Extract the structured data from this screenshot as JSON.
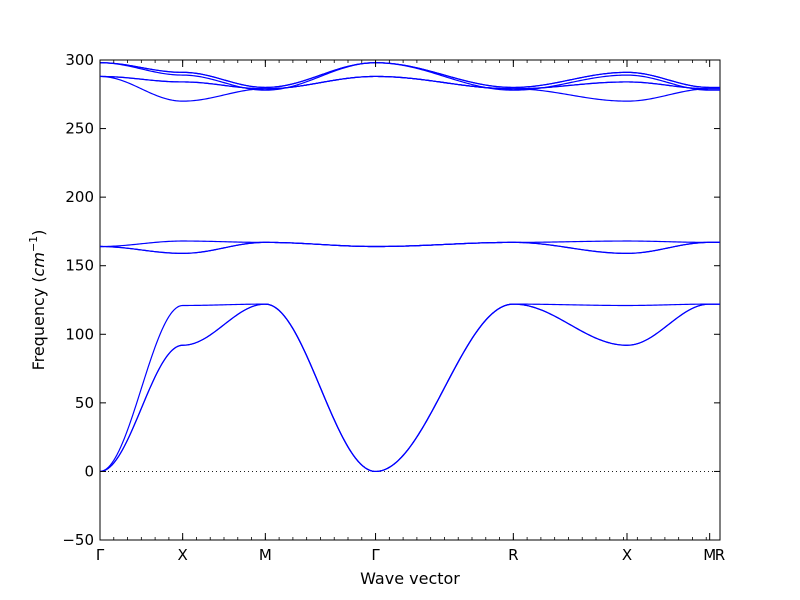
{
  "chart_data": {
    "type": "line",
    "xlabel": "Wave vector",
    "ylabel_text": "Frequency (",
    "ylabel_unit_base": "cm",
    "ylabel_unit_exp": "−1",
    "ylabel_close": ")",
    "ylim": [
      -50,
      300
    ],
    "y_ticks": [
      -50,
      0,
      50,
      100,
      150,
      200,
      250,
      300
    ],
    "y_tick_labels": [
      "−50",
      "0",
      "50",
      "100",
      "150",
      "200",
      "250",
      "300"
    ],
    "xlim": [
      0,
      9
    ],
    "x_ticks": [
      0,
      1.2,
      2.4,
      4,
      6,
      7.65,
      8.85,
      9
    ],
    "x_tick_labels": [
      "Γ",
      "X",
      "M",
      "Γ",
      "R",
      "X",
      "M",
      "R"
    ],
    "minor_x_step": 0.2,
    "zero_line": true,
    "grid": false,
    "line_color": "#0000ff",
    "segments": [
      {
        "from": "Γ",
        "to": "X",
        "x0": 0,
        "x1": 1.2
      },
      {
        "from": "X",
        "to": "M",
        "x0": 1.2,
        "x1": 2.4
      },
      {
        "from": "M",
        "to": "Γ",
        "x0": 2.4,
        "x1": 4
      },
      {
        "from": "Γ",
        "to": "R",
        "x0": 4,
        "x1": 6
      },
      {
        "from": "R",
        "to": "X",
        "x0": 6,
        "x1": 7.65
      },
      {
        "from": "X",
        "to": "M",
        "x0": 7.65,
        "x1": 8.85
      },
      {
        "from": "M",
        "to": "R",
        "x0": 8.85,
        "x1": 9
      }
    ],
    "series": [
      {
        "values": [
          [
            0,
            0
          ],
          [
            1.2,
            121
          ],
          [
            2.4,
            122
          ],
          [
            4,
            0
          ],
          [
            6,
            122
          ],
          [
            7.65,
            121
          ],
          [
            8.85,
            122
          ],
          [
            9,
            122
          ]
        ]
      },
      {
        "values": [
          [
            0,
            0
          ],
          [
            1.2,
            92
          ],
          [
            2.4,
            122
          ],
          [
            4,
            0
          ],
          [
            6,
            122
          ],
          [
            7.65,
            92
          ],
          [
            8.85,
            122
          ],
          [
            9,
            122
          ]
        ]
      },
      {
        "values": [
          [
            0,
            0
          ],
          [
            1.2,
            92
          ],
          [
            2.4,
            122
          ],
          [
            4,
            0
          ],
          [
            6,
            122
          ],
          [
            7.65,
            92
          ],
          [
            8.85,
            122
          ],
          [
            9,
            122
          ]
        ]
      },
      {
        "values": [
          [
            0,
            164
          ],
          [
            1.2,
            168
          ],
          [
            2.4,
            167
          ],
          [
            4,
            164
          ],
          [
            6,
            167
          ],
          [
            7.65,
            168
          ],
          [
            8.85,
            167
          ],
          [
            9,
            167
          ]
        ]
      },
      {
        "values": [
          [
            0,
            164
          ],
          [
            1.2,
            159
          ],
          [
            2.4,
            167
          ],
          [
            4,
            164
          ],
          [
            6,
            167
          ],
          [
            7.65,
            159
          ],
          [
            8.85,
            167
          ],
          [
            9,
            167
          ]
        ]
      },
      {
        "values": [
          [
            0,
            164
          ],
          [
            1.2,
            159
          ],
          [
            2.4,
            167
          ],
          [
            4,
            164
          ],
          [
            6,
            167
          ],
          [
            7.65,
            159
          ],
          [
            8.85,
            167
          ],
          [
            9,
            167
          ]
        ]
      },
      {
        "values": [
          [
            0,
            288
          ],
          [
            1.2,
            270
          ],
          [
            2.4,
            279
          ],
          [
            4,
            288
          ],
          [
            6,
            279
          ],
          [
            7.65,
            270
          ],
          [
            8.85,
            279
          ],
          [
            9,
            279
          ]
        ]
      },
      {
        "values": [
          [
            0,
            288
          ],
          [
            1.2,
            284
          ],
          [
            2.4,
            279
          ],
          [
            4,
            288
          ],
          [
            6,
            279
          ],
          [
            7.65,
            284
          ],
          [
            8.85,
            279
          ],
          [
            9,
            279
          ]
        ]
      },
      {
        "values": [
          [
            0,
            288
          ],
          [
            1.2,
            284
          ],
          [
            2.4,
            279
          ],
          [
            4,
            288
          ],
          [
            6,
            279
          ],
          [
            7.65,
            284
          ],
          [
            8.85,
            279
          ],
          [
            9,
            279
          ]
        ]
      },
      {
        "values": [
          [
            0,
            298
          ],
          [
            1.2,
            289
          ],
          [
            2.4,
            278
          ],
          [
            4,
            298
          ],
          [
            6,
            278
          ],
          [
            7.65,
            289
          ],
          [
            8.85,
            278
          ],
          [
            9,
            278
          ]
        ]
      },
      {
        "values": [
          [
            0,
            298
          ],
          [
            1.2,
            291
          ],
          [
            2.4,
            280
          ],
          [
            4,
            298
          ],
          [
            6,
            280
          ],
          [
            7.65,
            291
          ],
          [
            8.85,
            280
          ],
          [
            9,
            280
          ]
        ]
      },
      {
        "values": [
          [
            0,
            298
          ],
          [
            1.2,
            291
          ],
          [
            2.4,
            280
          ],
          [
            4,
            298
          ],
          [
            6,
            280
          ],
          [
            7.65,
            291
          ],
          [
            8.85,
            280
          ],
          [
            9,
            280
          ]
        ]
      }
    ]
  }
}
